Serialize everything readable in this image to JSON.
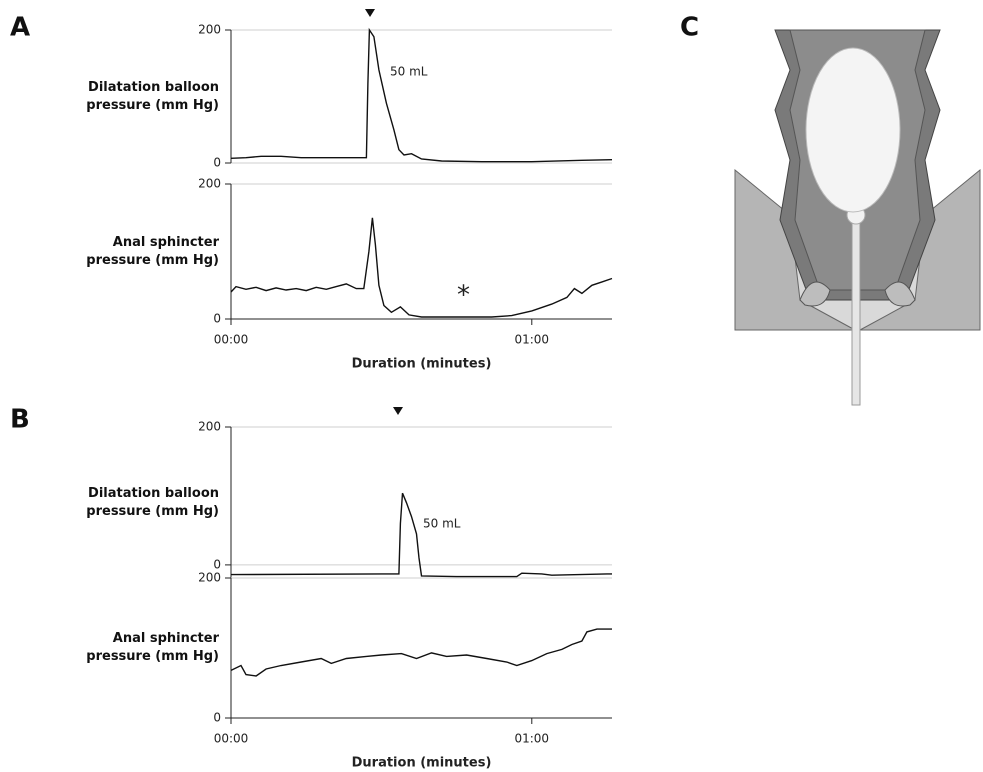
{
  "panel_labels": [
    "A",
    "B",
    "C"
  ],
  "chart_data": [
    {
      "type": "line",
      "ylabel": "Dilatation balloon pressure (mm Hg)",
      "color": "#111111",
      "grid": true,
      "xlim": [
        0,
        76
      ],
      "ylim": [
        0,
        200
      ],
      "yticks": [
        0,
        200
      ],
      "annotations": [
        "50 mL"
      ],
      "x": [
        0,
        3,
        6,
        10,
        14,
        20,
        26,
        27,
        27.3,
        27.6,
        28.5,
        29.5,
        31,
        32.5,
        33.5,
        34.5,
        36,
        38,
        42,
        50,
        60,
        70,
        76
      ],
      "values": [
        7,
        8,
        10,
        10,
        8,
        8,
        8,
        8,
        120,
        200,
        190,
        140,
        90,
        50,
        20,
        12,
        14,
        6,
        3,
        2,
        2,
        4,
        5
      ]
    },
    {
      "type": "line",
      "ylabel": "Anal sphincter pressure (mm Hg)",
      "color": "#111111",
      "grid": true,
      "xlim": [
        0,
        76
      ],
      "ylim": [
        0,
        200
      ],
      "yticks": [
        0,
        200
      ],
      "xticks": [
        {
          "value": 0,
          "label": "00:00"
        },
        {
          "value": 60,
          "label": "01:00"
        }
      ],
      "xlabel": "Duration (minutes)",
      "annotations": [
        "*"
      ],
      "x": [
        0,
        1,
        3,
        5,
        7,
        9,
        11,
        13,
        15,
        17,
        19,
        21,
        23,
        25,
        26.5,
        27.5,
        28.2,
        28.8,
        29.5,
        30.5,
        32,
        33.8,
        35.5,
        38,
        45,
        52,
        56,
        60,
        64,
        67,
        68.5,
        70,
        72,
        74,
        76
      ],
      "values": [
        40,
        48,
        44,
        47,
        42,
        46,
        43,
        45,
        42,
        47,
        44,
        48,
        52,
        45,
        45,
        100,
        150,
        110,
        50,
        20,
        10,
        18,
        6,
        3,
        3,
        3,
        5,
        12,
        22,
        32,
        45,
        38,
        50,
        55,
        60
      ]
    },
    {
      "type": "line",
      "ylabel": "Dilatation balloon pressure (mm Hg)",
      "color": "#111111",
      "grid": true,
      "xlim": [
        0,
        76
      ],
      "ylim": [
        -19,
        200
      ],
      "yticks": [
        0,
        200
      ],
      "annotations": [
        "50 mL"
      ],
      "x": [
        0,
        33.5,
        33.8,
        34.2,
        35,
        36,
        37,
        37.5,
        38,
        45,
        57,
        58,
        62,
        64,
        75,
        76
      ],
      "values": [
        -14,
        -13,
        60,
        104,
        90,
        70,
        45,
        10,
        -16,
        -17,
        -17,
        -12,
        -13,
        -15,
        -13,
        -13
      ]
    },
    {
      "type": "line",
      "ylabel": "Anal sphincter pressure (mm Hg)",
      "color": "#111111",
      "grid": true,
      "xlim": [
        0,
        76
      ],
      "ylim": [
        0,
        200
      ],
      "yticks": [
        0,
        200
      ],
      "xticks": [
        {
          "value": 0,
          "label": "00:00"
        },
        {
          "value": 60,
          "label": "01:00"
        }
      ],
      "xlabel": "Duration (minutes)",
      "x": [
        0,
        2,
        3,
        5,
        7,
        10,
        14,
        18,
        20,
        23,
        27,
        30,
        34,
        37,
        40,
        43,
        47,
        51,
        55,
        57,
        60,
        63,
        66,
        68,
        70,
        71,
        73,
        76
      ],
      "values": [
        68,
        75,
        62,
        60,
        70,
        75,
        80,
        85,
        78,
        85,
        88,
        90,
        92,
        85,
        93,
        88,
        90,
        85,
        80,
        75,
        82,
        92,
        98,
        105,
        110,
        123,
        127,
        127
      ]
    }
  ]
}
